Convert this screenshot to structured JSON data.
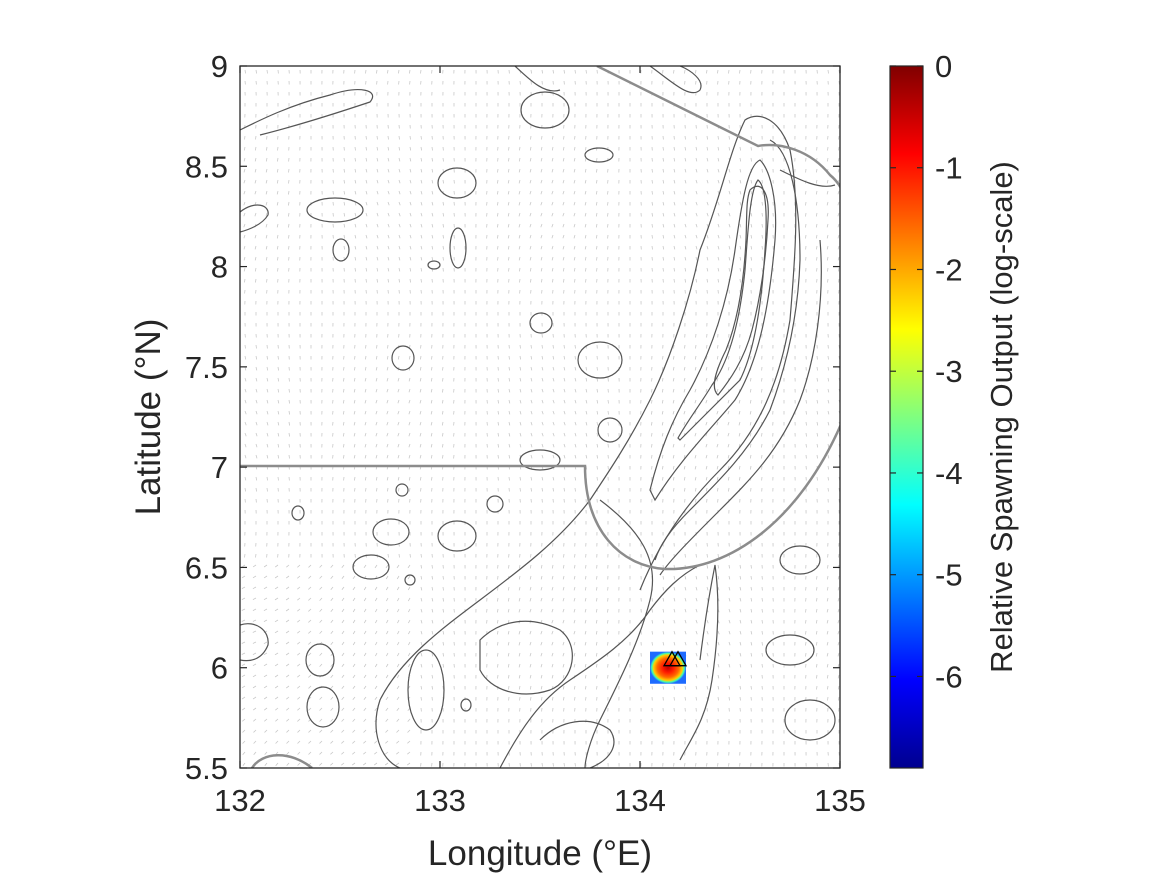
{
  "chart_data": {
    "type": "heatmap",
    "title": "",
    "xlabel": "Longitude (°E)",
    "ylabel": "Latitude (°N)",
    "xlim": [
      132,
      135
    ],
    "ylim": [
      5.5,
      9
    ],
    "xticks": [
      132,
      133,
      134,
      135
    ],
    "xtick_labels": [
      "132",
      "133",
      "134",
      "135"
    ],
    "yticks": [
      5.5,
      6,
      6.5,
      7,
      7.5,
      8,
      8.5,
      9
    ],
    "ytick_labels": [
      "5.5",
      "6",
      "6.5",
      "7",
      "7.5",
      "8",
      "8.5",
      "9"
    ],
    "colorbar": {
      "label": "Relative Spawning Output (log-scale)",
      "range": [
        -6.9,
        0
      ],
      "ticks": [
        0,
        -1,
        -2,
        -3,
        -4,
        -5,
        -6
      ],
      "tick_labels": [
        "0",
        "-1",
        "-2",
        "-3",
        "-4",
        "-5",
        "-6"
      ],
      "colormap": "jet",
      "colors": [
        "#00008f",
        "#0000ff",
        "#00ffff",
        "#ffff00",
        "#ff0000",
        "#800000"
      ]
    },
    "spawning_hotspot": {
      "center_lon": 134.12,
      "center_lat": 6.02,
      "extent_lon": [
        134.05,
        134.23
      ],
      "extent_lat": [
        5.92,
        6.08
      ],
      "peak_log_value": 0
    },
    "site_markers": [
      {
        "lon": 134.16,
        "lat": 6.04,
        "symbol": "triangle"
      },
      {
        "lon": 134.19,
        "lat": 6.04,
        "symbol": "triangle"
      }
    ],
    "eez_boundary_color": "#8c8c8c",
    "contour_color": "#555555",
    "current_vector_color": "#bdbdbd",
    "grid": false,
    "legend": "none"
  }
}
